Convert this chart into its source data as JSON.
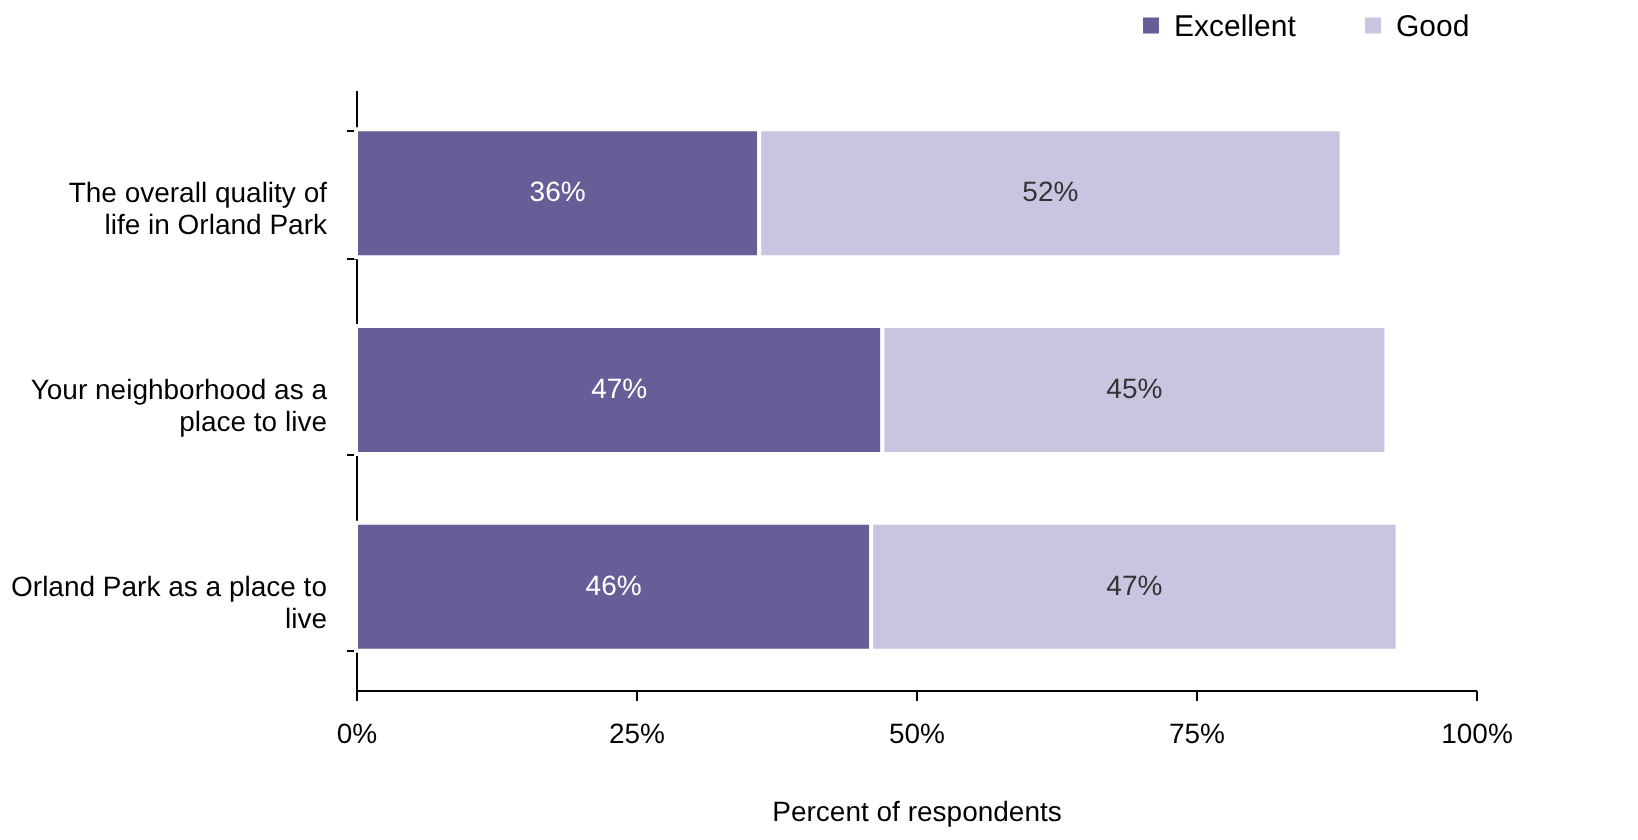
{
  "chart_data": {
    "type": "bar",
    "orientation": "horizontal",
    "stacked": true,
    "categories": [
      "The overall quality of life in Orland Park",
      "Your neighborhood as a place to live",
      "Orland Park as a place to live"
    ],
    "series": [
      {
        "name": "Excellent",
        "color": "#665e96",
        "values": [
          36,
          47,
          46
        ],
        "value_labels": [
          "36%",
          "47%",
          "46%"
        ]
      },
      {
        "name": "Good",
        "color": "#c9c5e1",
        "values": [
          52,
          45,
          47
        ],
        "value_labels": [
          "52%",
          "45%",
          "47%"
        ]
      }
    ],
    "xlabel": "Percent of respondents",
    "xlim": [
      0,
      100
    ],
    "xticks": [
      {
        "value": 0,
        "label": "0%"
      },
      {
        "value": 25,
        "label": "25%"
      },
      {
        "value": 50,
        "label": "50%"
      },
      {
        "value": 75,
        "label": "75%"
      },
      {
        "value": 100,
        "label": "100%"
      }
    ],
    "legend": "top right",
    "grid": false
  }
}
